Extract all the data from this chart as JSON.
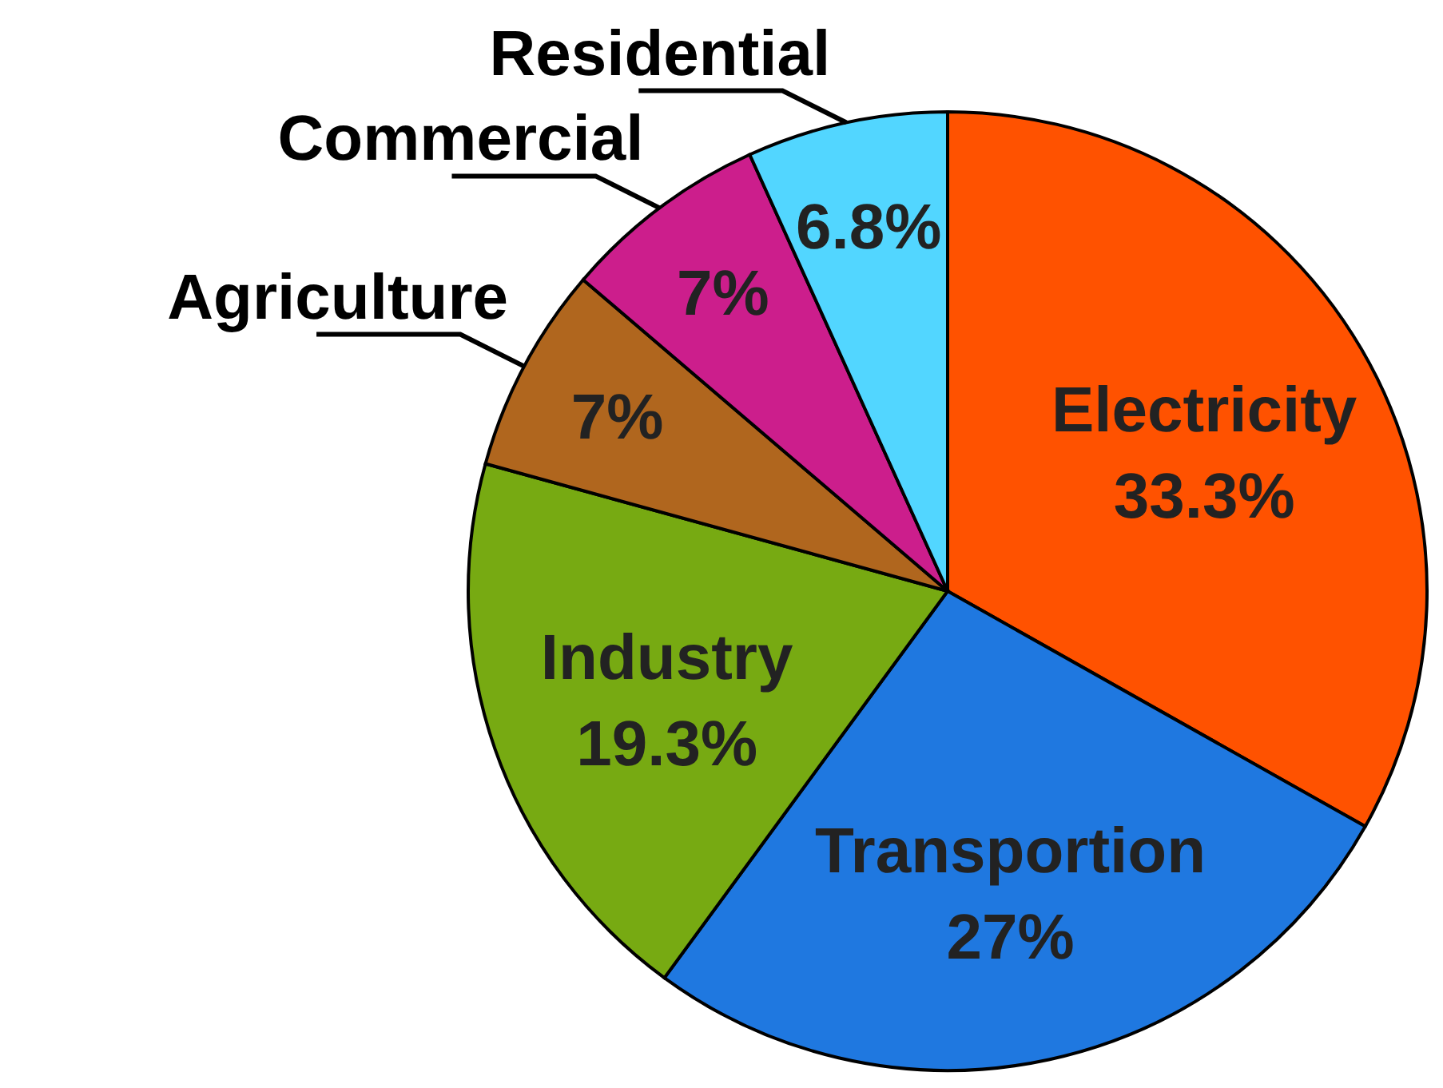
{
  "chart_data": {
    "type": "pie",
    "categories": [
      "Electricity",
      "Transportion",
      "Industry",
      "Agriculture",
      "Commercial",
      "Residential"
    ],
    "values": [
      33.3,
      27,
      19.3,
      7,
      7,
      6.8
    ],
    "value_labels": [
      "33.3%",
      "27%",
      "19.3%",
      "7%",
      "7%",
      "6.8%"
    ],
    "colors": [
      "#ff5200",
      "#1f78e0",
      "#77aa12",
      "#b0661e",
      "#cc1e8c",
      "#52d6ff"
    ]
  }
}
